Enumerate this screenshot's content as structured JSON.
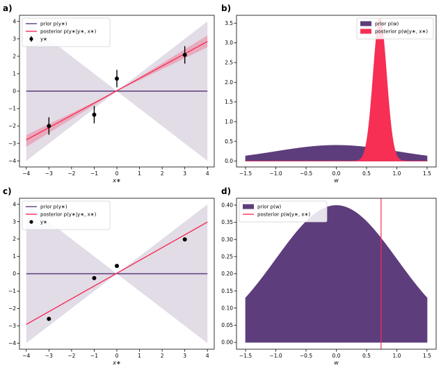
{
  "chart_data": [
    {
      "panel_label": "a)",
      "type": "line",
      "xlabel": "x∗",
      "ylabel": "",
      "xlim": [
        -4.3,
        4.3
      ],
      "ylim": [
        -4.35,
        4.35
      ],
      "xticks": [
        -4,
        -3,
        -2,
        -1,
        0,
        1,
        2,
        3,
        4
      ],
      "yticks": [
        -4,
        -3,
        -2,
        -1,
        0,
        1,
        2,
        3,
        4
      ],
      "xtick_labels": [
        "−4",
        "−3",
        "−2",
        "−1",
        "0",
        "1",
        "2",
        "3",
        "4"
      ],
      "ytick_labels": [
        "−4",
        "−3",
        "−2",
        "−1",
        "0",
        "1",
        "2",
        "3",
        "4"
      ],
      "legend_position": "top-left",
      "bands": [
        {
          "name": "prior",
          "color": "#5e3d7c",
          "opacity": 0.18,
          "upper_slope": 1.0,
          "lower_slope": -1.0
        },
        {
          "name": "posterior",
          "color": "#f72f55",
          "opacity": 0.28,
          "upper_slope": 0.8,
          "lower_slope": 0.63
        }
      ],
      "series": [
        {
          "name": "prior p(y∗)",
          "kind": "line",
          "color": "#5e3d7c",
          "x": [
            -4,
            4
          ],
          "y": [
            0,
            0
          ]
        },
        {
          "name": "posterior p(y∗|y∗, x∗)",
          "kind": "line",
          "color": "#f72f55",
          "x": [
            -4,
            4
          ],
          "y": [
            -2.8,
            2.85
          ]
        },
        {
          "name": "y∗",
          "kind": "errorbar",
          "color": "#000000",
          "x": [
            -3,
            -1,
            0,
            3
          ],
          "y": [
            -2.0,
            -1.35,
            0.72,
            2.08
          ],
          "yerr": [
            0.5,
            0.5,
            0.5,
            0.5
          ]
        }
      ],
      "legend": [
        {
          "label": "prior p(y∗)",
          "kind": "line",
          "color": "#5e3d7c"
        },
        {
          "label": "posterior p(y∗|y∗, x∗)",
          "kind": "line",
          "color": "#f72f55"
        },
        {
          "label": "y∗",
          "kind": "errorbar",
          "color": "#000000"
        }
      ]
    },
    {
      "panel_label": "b)",
      "type": "area",
      "xlabel": "w",
      "ylabel": "",
      "xlim": [
        -1.65,
        1.65
      ],
      "ylim": [
        -0.15,
        3.7
      ],
      "xticks": [
        -1.5,
        -1.0,
        -0.5,
        0.0,
        0.5,
        1.0,
        1.5
      ],
      "yticks": [
        0.0,
        0.5,
        1.0,
        1.5,
        2.0,
        2.5,
        3.0,
        3.5
      ],
      "xtick_labels": [
        "−1.5",
        "−1.0",
        "−0.5",
        "0.0",
        "0.5",
        "1.0",
        "1.5"
      ],
      "ytick_labels": [
        "0.0",
        "0.5",
        "1.0",
        "1.5",
        "2.0",
        "2.5",
        "3.0",
        "3.5"
      ],
      "legend_position": "top-right",
      "series": [
        {
          "name": "prior p(w)",
          "kind": "density",
          "color": "#5e3d7c",
          "mean": 0.0,
          "sd": 1.0,
          "x_range": [
            -1.5,
            1.5
          ]
        },
        {
          "name": "posterior p(w|y∗, x∗)",
          "kind": "density",
          "color": "#f72f55",
          "mean": 0.72,
          "sd": 0.11,
          "x_range": [
            -1.5,
            1.5
          ]
        }
      ],
      "legend": [
        {
          "label": "prior p(w)",
          "kind": "patch",
          "color": "#5e3d7c"
        },
        {
          "label": "posterior p(w|y∗, x∗)",
          "kind": "patch",
          "color": "#f72f55"
        }
      ]
    },
    {
      "panel_label": "c)",
      "type": "line",
      "xlabel": "x∗",
      "ylabel": "",
      "xlim": [
        -4.3,
        4.3
      ],
      "ylim": [
        -4.35,
        4.35
      ],
      "xticks": [
        -4,
        -3,
        -2,
        -1,
        0,
        1,
        2,
        3,
        4
      ],
      "yticks": [
        -4,
        -3,
        -2,
        -1,
        0,
        1,
        2,
        3,
        4
      ],
      "xtick_labels": [
        "−4",
        "−3",
        "−2",
        "−1",
        "0",
        "1",
        "2",
        "3",
        "4"
      ],
      "ytick_labels": [
        "−4",
        "−3",
        "−2",
        "−1",
        "0",
        "1",
        "2",
        "3",
        "4"
      ],
      "legend_position": "top-left",
      "bands": [
        {
          "name": "prior",
          "color": "#5e3d7c",
          "opacity": 0.18,
          "upper_slope": 1.0,
          "lower_slope": -1.0
        }
      ],
      "series": [
        {
          "name": "prior p(y∗)",
          "kind": "line",
          "color": "#5e3d7c",
          "x": [
            -4,
            4
          ],
          "y": [
            0,
            0
          ]
        },
        {
          "name": "posterior p(y∗|y∗, x∗)",
          "kind": "line",
          "color": "#f72f55",
          "x": [
            -4,
            4
          ],
          "y": [
            -2.92,
            2.98
          ]
        },
        {
          "name": "y∗",
          "kind": "scatter",
          "color": "#000000",
          "x": [
            -3,
            -1,
            0,
            3
          ],
          "y": [
            -2.6,
            -0.25,
            0.45,
            1.98
          ]
        }
      ],
      "legend": [
        {
          "label": "prior p(y∗)",
          "kind": "line",
          "color": "#5e3d7c"
        },
        {
          "label": "posterior p(y∗|y∗, x∗)",
          "kind": "line",
          "color": "#f72f55"
        },
        {
          "label": "y∗",
          "kind": "marker",
          "color": "#000000"
        }
      ]
    },
    {
      "panel_label": "d)",
      "type": "area",
      "xlabel": "w",
      "ylabel": "",
      "xlim": [
        -1.65,
        1.65
      ],
      "ylim": [
        -0.02,
        0.42
      ],
      "xticks": [
        -1.5,
        -1.0,
        -0.5,
        0.0,
        0.5,
        1.0,
        1.5
      ],
      "yticks": [
        0.0,
        0.05,
        0.1,
        0.15,
        0.2,
        0.25,
        0.3,
        0.35,
        0.4
      ],
      "xtick_labels": [
        "−1.5",
        "−1.0",
        "−0.5",
        "0.0",
        "0.5",
        "1.0",
        "1.5"
      ],
      "ytick_labels": [
        "0.00",
        "0.05",
        "0.10",
        "0.15",
        "0.20",
        "0.25",
        "0.30",
        "0.35",
        "0.40"
      ],
      "legend_position": "top-left",
      "series": [
        {
          "name": "prior p(w)",
          "kind": "density",
          "color": "#5e3d7c",
          "mean": 0.0,
          "sd": 1.0,
          "x_range": [
            -1.5,
            1.5
          ]
        },
        {
          "name": "posterior p(w|y∗, x∗)",
          "kind": "vline",
          "color": "#f72f55",
          "x": 0.74
        }
      ],
      "legend": [
        {
          "label": "prior p(w)",
          "kind": "patch",
          "color": "#5e3d7c"
        },
        {
          "label": "posterior p(w|y∗, x∗)",
          "kind": "line",
          "color": "#f72f55"
        }
      ]
    }
  ]
}
